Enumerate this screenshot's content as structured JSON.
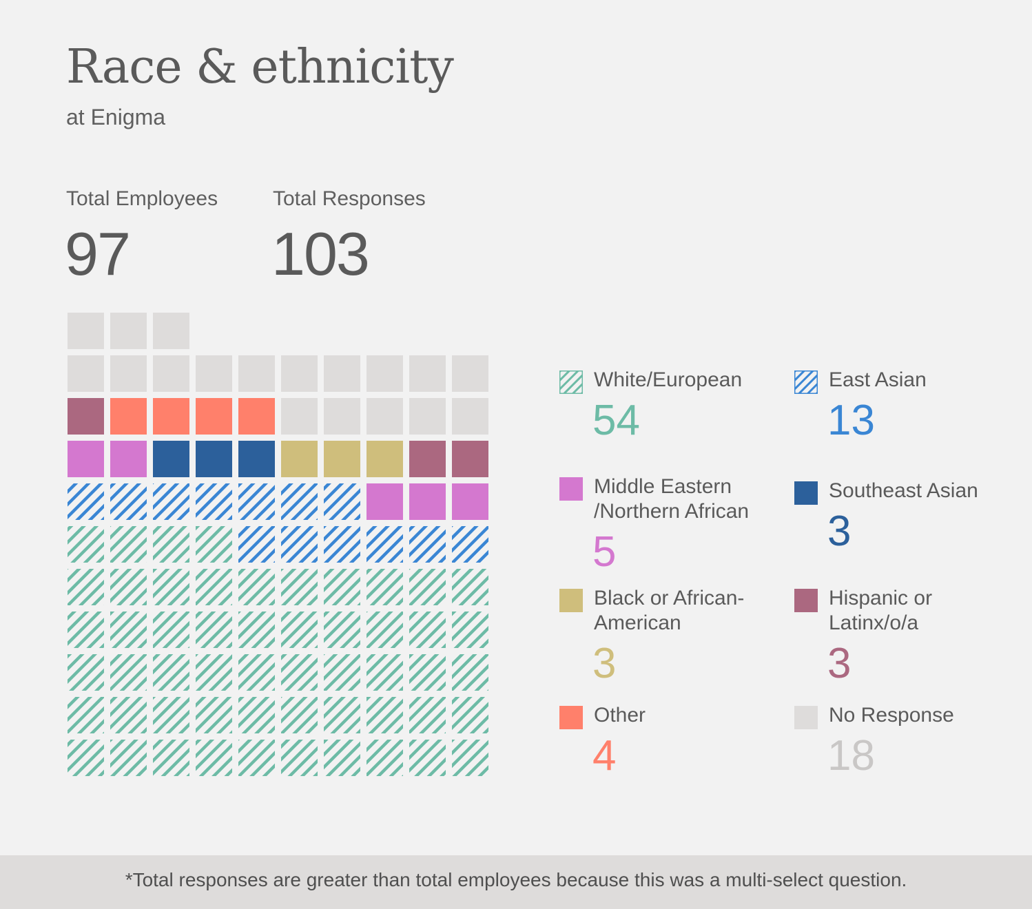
{
  "header": {
    "title": "Race & ethnicity",
    "subtitle": "at Enigma"
  },
  "stats": {
    "employees_label": "Total Employees",
    "employees_value": "97",
    "responses_label": "Total Responses",
    "responses_value": "103"
  },
  "chart_data": {
    "type": "waffle",
    "title": "Race & ethnicity",
    "subtitle": "at Enigma",
    "columns": 10,
    "fill_order": "bottom-left, left to right, row by row upward",
    "categories": [
      {
        "name": "White/European",
        "value": 54,
        "value_label": "54",
        "color": "#6dbba6",
        "pattern": "hatched"
      },
      {
        "name": "East Asian",
        "value": 13,
        "value_label": "13",
        "color": "#3a86d4",
        "pattern": "hatched"
      },
      {
        "name": "Middle Eastern /Northern African",
        "value": 5,
        "value_label": "5",
        "color": "#d478cf",
        "pattern": "solid"
      },
      {
        "name": "Southeast Asian",
        "value": 3,
        "value_label": "3",
        "color": "#2c609b",
        "pattern": "solid"
      },
      {
        "name": "Black or African-American",
        "value": 3,
        "value_label": "3",
        "color": "#cfbe7c",
        "pattern": "solid"
      },
      {
        "name": "Hispanic or Latinx/o/a",
        "value": 3,
        "value_label": "3",
        "color": "#ab6880",
        "pattern": "solid"
      },
      {
        "name": "Other",
        "value": 4,
        "value_label": "4",
        "color": "#ff806b",
        "pattern": "solid"
      },
      {
        "name": "No Response",
        "value": 18,
        "value_label": "18",
        "color": "#dedcdb",
        "pattern": "solid"
      }
    ],
    "legend_value_colors": [
      "#6dbba6",
      "#3a86d4",
      "#d478cf",
      "#2c609b",
      "#cfbe7c",
      "#ab6880",
      "#ff806b",
      "#c9c7c6"
    ]
  },
  "legend": {
    "items": [
      {
        "label_lines": [
          "White/European"
        ],
        "value": "54"
      },
      {
        "label_lines": [
          "East Asian"
        ],
        "value": "13"
      },
      {
        "label_lines": [
          "Middle Eastern",
          "/Northern African"
        ],
        "value": "5"
      },
      {
        "label_lines": [
          "Southeast Asian"
        ],
        "value": "3"
      },
      {
        "label_lines": [
          "Black or African-",
          "American"
        ],
        "value": "3"
      },
      {
        "label_lines": [
          "Hispanic or",
          "Latinx/o/a"
        ],
        "value": "3"
      },
      {
        "label_lines": [
          "Other"
        ],
        "value": "4"
      },
      {
        "label_lines": [
          "No Response"
        ],
        "value": "18"
      }
    ]
  },
  "footer": {
    "note": "*Total responses are greater than total employees because this was a multi-select question."
  }
}
